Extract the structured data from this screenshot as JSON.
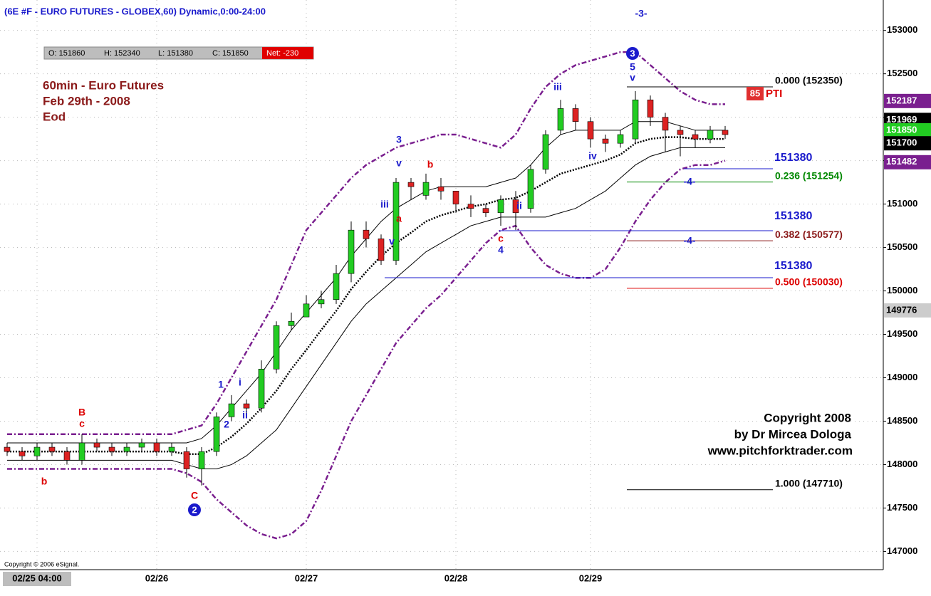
{
  "chart_data": {
    "type": "candlestick",
    "title": "(6E #F - EURO FUTURES - GLOBEX,60) Dynamic,0:00-24:00",
    "info": {
      "open": "O: 151860",
      "high": "H: 152340",
      "low": "L: 151380",
      "close": "C: 151850",
      "net": "Net: -230"
    },
    "notes": [
      "60min - Euro Futures",
      "Feb 29th - 2008",
      "Eod"
    ],
    "copyright": [
      "Copyright 2008",
      "by Dr Mircea Dologa",
      "www.pitchforktrader.com"
    ],
    "vendor": "Copyright © 2006 eSignal.",
    "categories": [
      null,
      null,
      "02/25 04:00",
      null,
      null,
      null,
      null,
      null,
      null,
      null,
      "02/26",
      null,
      null,
      null,
      null,
      null,
      null,
      null,
      null,
      null,
      "02/27",
      null,
      null,
      null,
      null,
      null,
      null,
      null,
      null,
      null,
      "02/28",
      null,
      null,
      null,
      null,
      null,
      null,
      null,
      null,
      "02/29",
      null,
      null,
      null,
      null,
      null,
      null,
      null,
      null,
      null
    ],
    "open": [
      148200,
      148150,
      148100,
      148200,
      148150,
      148050,
      148250,
      148200,
      148150,
      148200,
      148250,
      148150,
      148150,
      147950,
      148150,
      148550,
      148700,
      148650,
      149100,
      149600,
      149700,
      149850,
      149900,
      150200,
      150700,
      150600,
      150350,
      151250,
      151100,
      151200,
      151150,
      151000,
      150950,
      150900,
      151050,
      150950,
      151400,
      151850,
      152100,
      151950,
      151750,
      151700,
      151750,
      152200,
      152000,
      151850,
      151800,
      151750,
      151850
    ],
    "high": [
      148250,
      148200,
      148250,
      148250,
      148200,
      148350,
      148300,
      148250,
      148250,
      148300,
      148300,
      148250,
      148200,
      148200,
      148600,
      148800,
      148750,
      149200,
      149650,
      149750,
      149950,
      150000,
      150300,
      150800,
      150800,
      150650,
      151300,
      151300,
      151350,
      151300,
      151150,
      151100,
      151000,
      151100,
      151150,
      151450,
      151850,
      152200,
      152150,
      152000,
      151800,
      151850,
      152300,
      152250,
      152050,
      151900,
      151850,
      151900,
      151900
    ],
    "low": [
      148100,
      148050,
      148050,
      148100,
      148000,
      148000,
      148150,
      148100,
      148100,
      148150,
      148100,
      148100,
      147850,
      147760,
      148100,
      148500,
      148550,
      148600,
      149050,
      149550,
      149750,
      149800,
      149850,
      150100,
      150500,
      150300,
      150300,
      151050,
      151050,
      151050,
      150900,
      150850,
      150850,
      150750,
      150700,
      150900,
      151350,
      151800,
      151850,
      151650,
      151600,
      151650,
      151700,
      151900,
      151600,
      151550,
      151650,
      151700,
      151750
    ],
    "close": [
      148150,
      148100,
      148200,
      148150,
      148050,
      148250,
      148200,
      148150,
      148200,
      148250,
      148150,
      148200,
      147950,
      148150,
      148550,
      148700,
      148650,
      149100,
      149600,
      149650,
      149850,
      149900,
      150200,
      150700,
      150600,
      150350,
      151250,
      151200,
      151250,
      151150,
      151000,
      150950,
      150900,
      151050,
      150900,
      151400,
      151800,
      152100,
      151950,
      151750,
      151700,
      151800,
      152200,
      152000,
      151850,
      151800,
      151750,
      151850,
      151800
    ],
    "up_color": "#22cc22",
    "down_color": "#dd2222",
    "series": [
      {
        "color": "#7a1f8f",
        "style": "dashdot",
        "values": [
          148350,
          148350,
          148350,
          148350,
          148350,
          148350,
          148350,
          148350,
          148350,
          148350,
          148350,
          148350,
          148400,
          148450,
          148700,
          149000,
          149300,
          149600,
          149900,
          150300,
          150700,
          150900,
          151100,
          151300,
          151450,
          151550,
          151650,
          151700,
          151750,
          151800,
          151800,
          151750,
          151700,
          151650,
          151800,
          152100,
          152350,
          152500,
          152600,
          152650,
          152700,
          152750,
          152750,
          152600,
          152450,
          152300,
          152200,
          152150,
          152150
        ]
      },
      {
        "color": "#7a1f8f",
        "style": "dashdot",
        "values": [
          147950,
          147950,
          147950,
          147950,
          147950,
          147950,
          147950,
          147950,
          147950,
          147950,
          147950,
          147950,
          147900,
          147800,
          147600,
          147450,
          147300,
          147200,
          147150,
          147200,
          147350,
          147700,
          148100,
          148500,
          148800,
          149100,
          149400,
          149600,
          149800,
          149950,
          150150,
          150350,
          150550,
          150700,
          150750,
          150500,
          150300,
          150200,
          150150,
          150150,
          150250,
          150500,
          150800,
          151050,
          151250,
          151400,
          151450,
          151450,
          151500
        ]
      },
      {
        "color": "#000000",
        "style": "solid",
        "values": [
          148250,
          148250,
          148250,
          148250,
          148250,
          148250,
          148250,
          148250,
          148250,
          148250,
          148250,
          148250,
          148250,
          148300,
          148450,
          148650,
          148850,
          149050,
          149300,
          149550,
          149750,
          149950,
          150150,
          150400,
          150600,
          150800,
          150950,
          151050,
          151150,
          151200,
          151200,
          151200,
          151200,
          151250,
          151300,
          151450,
          151650,
          151800,
          151850,
          151850,
          151850,
          151850,
          151950,
          151950,
          151950,
          151900,
          151850,
          151850,
          151850
        ]
      },
      {
        "color": "#000000",
        "style": "solid",
        "values": [
          148050,
          148050,
          148050,
          148050,
          148050,
          148050,
          148050,
          148050,
          148050,
          148050,
          148050,
          148050,
          148000,
          147950,
          147950,
          148000,
          148100,
          148250,
          148400,
          148650,
          148900,
          149150,
          149400,
          149650,
          149850,
          150000,
          150150,
          150300,
          150450,
          150550,
          150650,
          150750,
          150800,
          150850,
          150850,
          150850,
          150850,
          150900,
          150950,
          151050,
          151150,
          151300,
          151450,
          151550,
          151600,
          151650,
          151650,
          151650,
          151650
        ]
      },
      {
        "color": "#000000",
        "style": "dotted",
        "values": [
          148150,
          148150,
          148150,
          148150,
          148150,
          148150,
          148150,
          148150,
          148150,
          148150,
          148150,
          148150,
          148120,
          148120,
          148200,
          148320,
          148470,
          148650,
          148850,
          149100,
          149320,
          149550,
          149770,
          150020,
          150220,
          150400,
          150550,
          150670,
          150800,
          150870,
          150920,
          150970,
          151000,
          151050,
          151070,
          151150,
          151250,
          151350,
          151400,
          151450,
          151500,
          151570,
          151700,
          151750,
          151770,
          151770,
          151750,
          151750,
          151750
        ]
      }
    ],
    "ylim": [
      146790,
      153350
    ],
    "yticks": [
      153000,
      152500,
      152000,
      151500,
      151000,
      150500,
      150000,
      149500,
      149000,
      148500,
      148000,
      147500,
      147000
    ],
    "grid": true,
    "fib_levels": [
      {
        "label": "0.000 (152350)",
        "value": 152350,
        "color": "#000000"
      },
      {
        "label": "0.236 (151254)",
        "value": 151254,
        "color": "#008800"
      },
      {
        "label": "0.382 (150577)",
        "value": 150577,
        "color": "#8b1a1a"
      },
      {
        "label": "0.500 (150030)",
        "value": 150030,
        "color": "#dd0000"
      },
      {
        "label": "1.000 (147710)",
        "value": 147710,
        "color": "#000000"
      }
    ],
    "projection_labels": [
      151380,
      151380,
      151380
    ],
    "price_markers": [
      {
        "value": 152187,
        "color": "#7a1f8f"
      },
      {
        "value": 151969,
        "color": "#000000"
      },
      {
        "value": 151850,
        "color": "#22cc22"
      },
      {
        "value": 151700,
        "color": "#000000"
      },
      {
        "value": 151482,
        "color": "#7a1f8f"
      },
      {
        "value": 149776,
        "color": "#cccccc"
      }
    ],
    "pti": {
      "value": 85,
      "label": "PTI"
    },
    "annotations": [
      {
        "text": "-3-",
        "color": "#1a1acc"
      },
      {
        "text": "3",
        "color": "#1a1acc",
        "circle": true
      },
      {
        "text": "5",
        "color": "#1a1acc"
      },
      {
        "text": "v",
        "color": "#1a1acc"
      },
      {
        "text": "iii",
        "color": "#1a1acc"
      },
      {
        "text": "3",
        "color": "#1a1acc"
      },
      {
        "text": "v",
        "color": "#1a1acc"
      },
      {
        "text": "b",
        "color": "#dd0000"
      },
      {
        "text": "iii",
        "color": "#1a1acc"
      },
      {
        "text": "a",
        "color": "#dd0000"
      },
      {
        "text": "v",
        "color": "#1a1acc"
      },
      {
        "text": "c",
        "color": "#dd0000"
      },
      {
        "text": "4",
        "color": "#1a1acc"
      },
      {
        "text": "ii",
        "color": "#1a1acc"
      },
      {
        "text": "iv",
        "color": "#1a1acc"
      },
      {
        "text": "1",
        "color": "#1a1acc"
      },
      {
        "text": "i",
        "color": "#1a1acc"
      },
      {
        "text": "2",
        "color": "#1a1acc"
      },
      {
        "text": "ii",
        "color": "#1a1acc"
      },
      {
        "text": "B",
        "color": "#dd0000"
      },
      {
        "text": "c",
        "color": "#dd0000"
      },
      {
        "text": "b",
        "color": "#dd0000"
      },
      {
        "text": "C",
        "color": "#dd0000"
      },
      {
        "text": "2",
        "color": "#1a1acc",
        "circle": true
      },
      {
        "text": "-4-",
        "color": "#1a1acc"
      },
      {
        "text": "-4-",
        "color": "#1a1acc"
      }
    ]
  }
}
